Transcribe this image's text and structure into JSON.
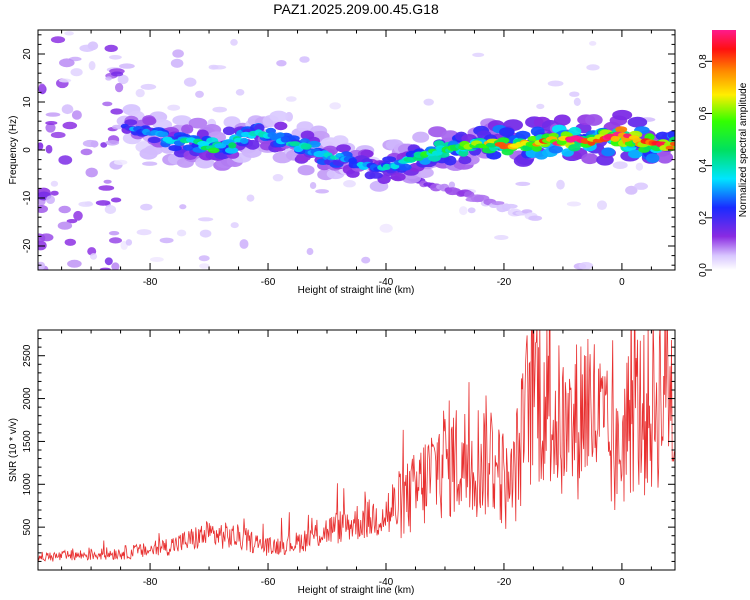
{
  "title": "PAZ1.2025.209.00.45.G18",
  "chart_data": [
    {
      "type": "heatmap",
      "xlabel": "Height of straight line (km)",
      "ylabel": "Frequency (Hz)",
      "xlim": [
        -99,
        9
      ],
      "ylim": [
        -25,
        25
      ],
      "xticks": [
        -80,
        -60,
        -40,
        -20,
        0
      ],
      "yticks": [
        -20,
        -10,
        0,
        10,
        20
      ],
      "colorbar": {
        "label": "Normalized spectral amplitude",
        "range": [
          0,
          0.92
        ],
        "ticks": [
          0.0,
          0.2,
          0.4,
          0.6,
          0.8
        ],
        "colormap": "rainbow (white-violet-blue-cyan-green-yellow-orange-red-magenta)"
      },
      "ridge": {
        "x": [
          -84,
          -80,
          -76,
          -72,
          -69,
          -66,
          -62,
          -58,
          -54,
          -50,
          -46,
          -42,
          -38,
          -34,
          -30,
          -26,
          -22,
          -18,
          -14,
          -10,
          -6,
          -2,
          0,
          3,
          6,
          9
        ],
        "frequency_hz": [
          4.5,
          3.5,
          2.0,
          1.5,
          0.5,
          1.5,
          3.5,
          2.5,
          0.5,
          -1.0,
          -2.5,
          -4.0,
          -3.0,
          -1.0,
          0.0,
          1.0,
          1.5,
          1.0,
          1.5,
          2.0,
          2.0,
          2.5,
          3.0,
          1.5,
          1.0,
          1.0
        ],
        "amplitude": [
          0.25,
          0.3,
          0.35,
          0.4,
          0.45,
          0.4,
          0.35,
          0.35,
          0.35,
          0.35,
          0.3,
          0.3,
          0.35,
          0.45,
          0.5,
          0.5,
          0.6,
          0.75,
          0.7,
          0.75,
          0.8,
          0.85,
          0.9,
          0.8,
          0.75,
          0.7
        ]
      },
      "secondary_branch": {
        "x": [
          -42,
          -36,
          -30,
          -26,
          -22,
          -18,
          -14
        ],
        "frequency_hz": [
          -3.5,
          -6.0,
          -8.0,
          -9.5,
          -11.0,
          -12.5,
          -14.0
        ],
        "amplitude": [
          0.2,
          0.15,
          0.12,
          0.1,
          0.08,
          0.06,
          0.05
        ]
      }
    },
    {
      "type": "line",
      "xlabel": "Height of straight line (km)",
      "ylabel": "SNR (10 * v/v)",
      "xlim": [
        -99,
        9
      ],
      "ylim": [
        0,
        2800
      ],
      "xticks": [
        -80,
        -60,
        -40,
        -20,
        0
      ],
      "yticks": [
        500,
        1000,
        1500,
        2000,
        2500
      ],
      "color": "#e83030",
      "series": [
        {
          "x": [
            -99,
            -95,
            -90,
            -85,
            -80,
            -75,
            -70,
            -65,
            -60,
            -55,
            -50,
            -45,
            -40,
            -35,
            -32,
            -30,
            -26,
            -22,
            -19,
            -17,
            -15,
            -12,
            -9,
            -6,
            -3,
            -1,
            0,
            2,
            4,
            6,
            8,
            9
          ],
          "values": [
            150,
            160,
            180,
            200,
            230,
            310,
            420,
            380,
            270,
            320,
            460,
            560,
            640,
            900,
            1150,
            1300,
            1250,
            1350,
            900,
            1500,
            2250,
            1850,
            1550,
            2000,
            1600,
            1250,
            1500,
            1900,
            1800,
            2000,
            2350,
            1650
          ]
        }
      ]
    }
  ]
}
